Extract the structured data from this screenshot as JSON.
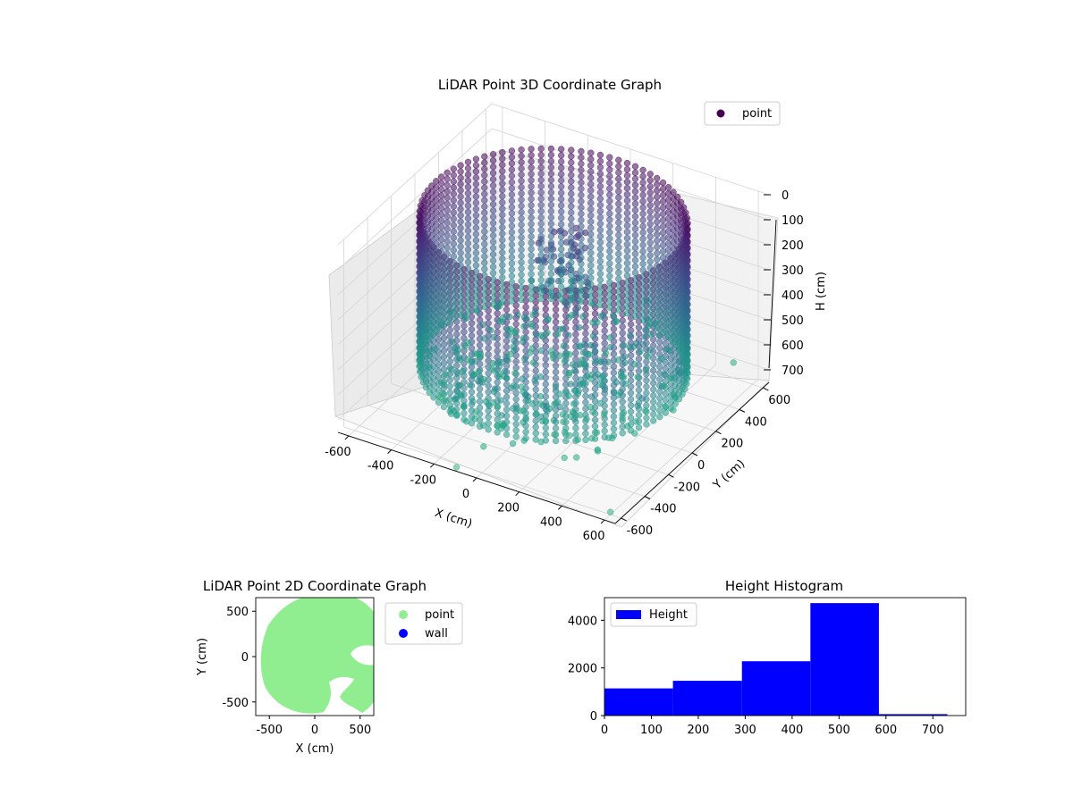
{
  "figure": {
    "background": "#ffffff"
  },
  "chart_data": [
    {
      "type": "scatter3d",
      "title": "LiDAR Point 3D Coordinate Graph",
      "xlabel": "X (cm)",
      "ylabel": "Y (cm)",
      "zlabel": "H (cm)",
      "xticks": [
        "-600",
        "-400",
        "-200",
        "0",
        "200",
        "400",
        "600"
      ],
      "yticks": [
        "-600",
        "-400",
        "-200",
        "0",
        "200",
        "400",
        "600"
      ],
      "zticks": [
        "0",
        "100",
        "200",
        "300",
        "400",
        "500",
        "600",
        "700"
      ],
      "xlim": [
        -650,
        650
      ],
      "ylim": [
        -650,
        650
      ],
      "zlim": [
        750,
        0
      ],
      "zaxis_inverted": true,
      "legend": [
        {
          "name": "point",
          "color": "#440154"
        }
      ],
      "legend_position": "top-right",
      "colormap": "viridis",
      "grid": true,
      "series": [
        {
          "name": "point",
          "description_shape": "cylindrical wall of radius ~550 cm spanning heights ~0-600 cm plus scattered interior points",
          "wall_radius": 550,
          "wall_height_range": [
            0,
            600
          ]
        }
      ]
    },
    {
      "type": "scatter",
      "title": "LiDAR Point 2D Coordinate Graph",
      "xlabel": "X (cm)",
      "ylabel": "Y (cm)",
      "xticks": [
        "-500",
        "0",
        "500"
      ],
      "yticks": [
        "500",
        "0",
        "-500"
      ],
      "xlim": [
        -650,
        650
      ],
      "ylim": [
        -650,
        650
      ],
      "legend": [
        {
          "name": "point",
          "color": "#90ee90"
        },
        {
          "name": "wall",
          "color": "#0000ff"
        }
      ],
      "legend_position": "outside-right"
    },
    {
      "type": "histogram",
      "title": "Height Histogram",
      "xticks": [
        "0",
        "100",
        "200",
        "300",
        "400",
        "500",
        "600",
        "700"
      ],
      "yticks": [
        "0",
        "2000",
        "4000"
      ],
      "xlim": [
        0,
        770
      ],
      "ylim": [
        0,
        4950
      ],
      "bin_edges": [
        0,
        146,
        293,
        439,
        585,
        731
      ],
      "counts": [
        1140,
        1460,
        2280,
        4720,
        60
      ],
      "legend": [
        {
          "name": "Height",
          "color": "#0000ff"
        }
      ],
      "legend_position": "top-left",
      "bar_color": "#0000ff"
    }
  ]
}
